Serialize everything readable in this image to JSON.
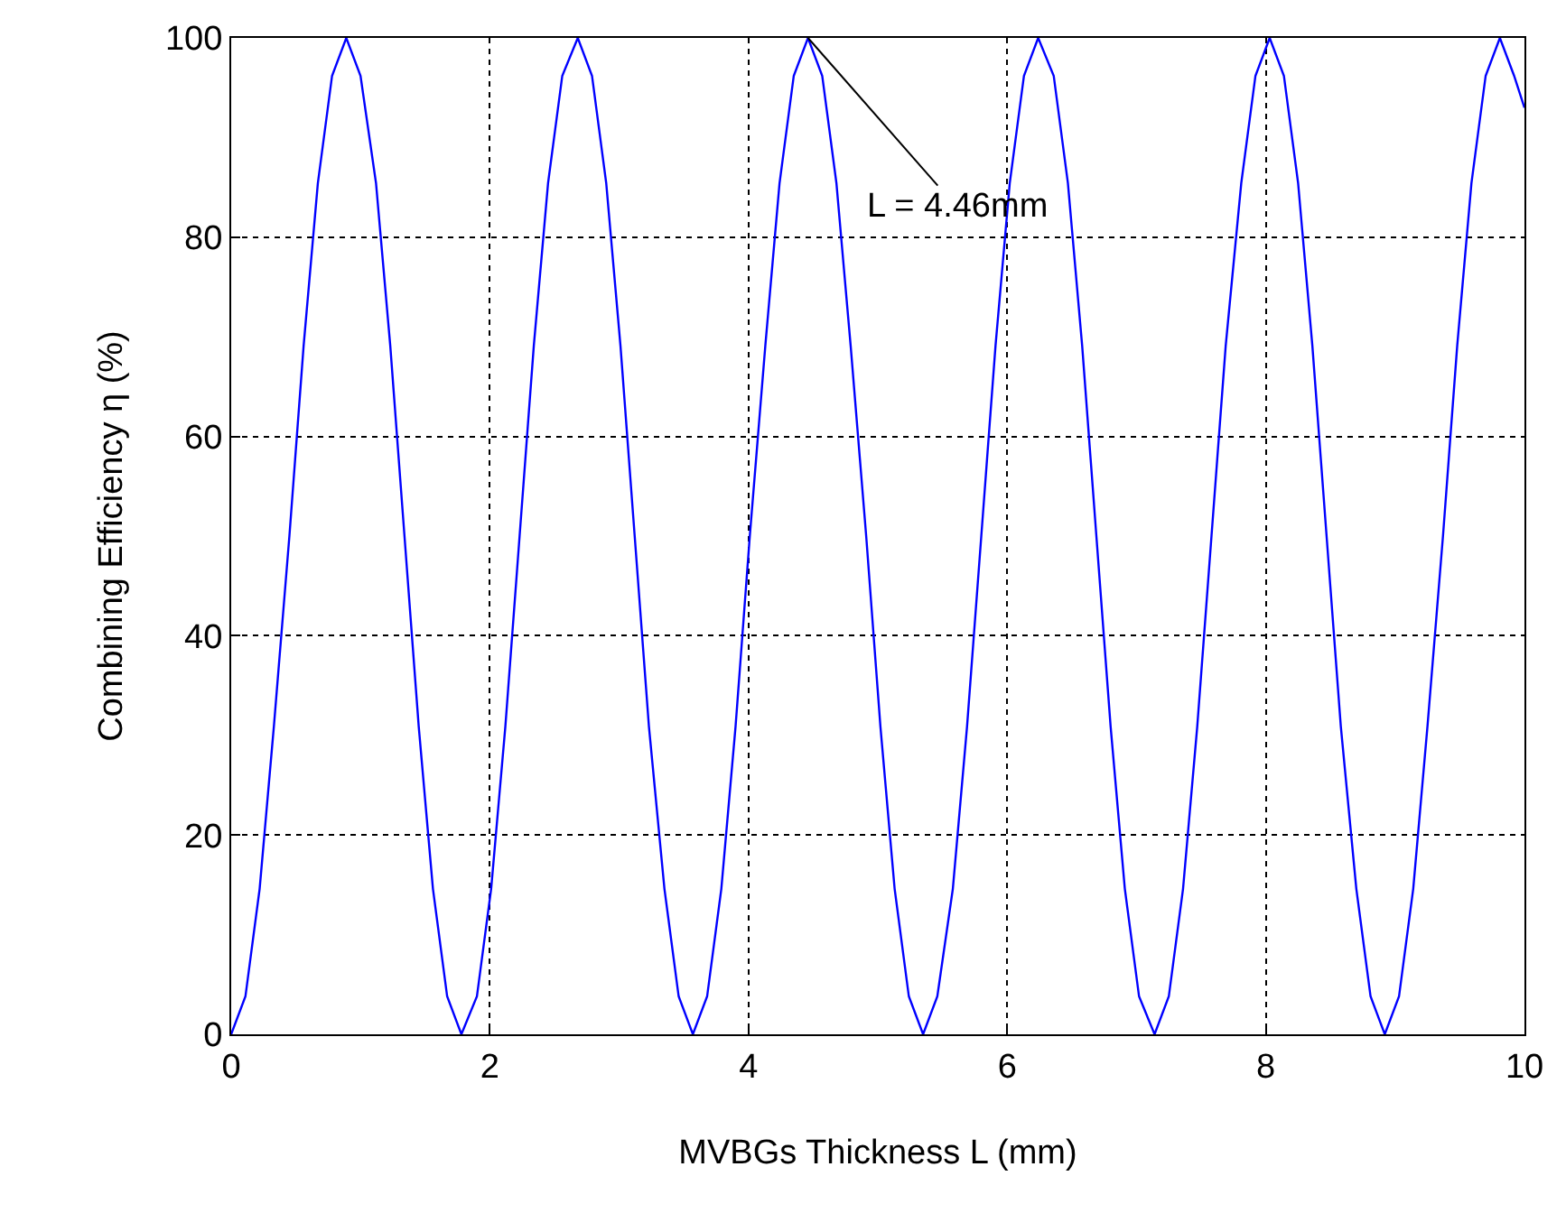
{
  "chart_data": {
    "type": "line",
    "xlabel": "MVBGs Thickness L (mm)",
    "ylabel": "Combining Efficiency η (%)",
    "x": [
      0,
      0.11,
      0.22,
      0.33,
      0.45,
      0.56,
      0.67,
      0.78,
      0.89,
      1.0,
      1.12,
      1.23,
      1.34,
      1.45,
      1.56,
      1.67,
      1.78,
      1.9,
      2.01,
      2.12,
      2.23,
      2.34,
      2.45,
      2.56,
      2.68,
      2.79,
      2.9,
      3.01,
      3.12,
      3.23,
      3.35,
      3.46,
      3.57,
      3.68,
      3.79,
      3.9,
      4.01,
      4.13,
      4.24,
      4.35,
      4.46,
      4.57,
      4.68,
      4.79,
      4.91,
      5.02,
      5.13,
      5.24,
      5.35,
      5.46,
      5.58,
      5.69,
      5.8,
      5.91,
      6.02,
      6.13,
      6.24,
      6.36,
      6.47,
      6.58,
      6.69,
      6.8,
      6.91,
      7.02,
      7.14,
      7.25,
      7.36,
      7.47,
      7.58,
      7.69,
      7.81,
      7.92,
      8.03,
      8.14,
      8.25,
      8.36,
      8.47,
      8.58,
      8.7,
      8.81,
      8.92,
      9.03,
      9.14,
      9.25,
      9.37,
      9.48,
      9.59,
      9.7,
      9.81,
      9.92,
      10
    ],
    "series": [
      {
        "color": "#0000ff",
        "values": [
          0,
          3.8,
          14.6,
          30.9,
          50,
          69.1,
          85.4,
          96.2,
          100,
          96.2,
          85.4,
          69.1,
          50,
          30.9,
          14.6,
          3.8,
          0,
          3.8,
          14.6,
          30.9,
          50,
          69.1,
          85.4,
          96.2,
          100,
          96.2,
          85.4,
          69.1,
          50,
          30.9,
          14.6,
          3.8,
          0,
          3.8,
          14.6,
          30.9,
          50,
          69.1,
          85.4,
          96.2,
          100,
          96.2,
          85.4,
          69.1,
          50,
          30.9,
          14.6,
          3.8,
          0,
          3.8,
          14.6,
          30.9,
          50,
          69.1,
          85.4,
          96.2,
          100,
          96.2,
          85.4,
          69.1,
          50,
          30.9,
          14.6,
          3.8,
          0,
          3.8,
          14.6,
          30.9,
          50,
          69.1,
          85.4,
          96.2,
          100,
          96.2,
          85.4,
          69.1,
          50,
          30.9,
          14.6,
          3.8,
          0,
          3.8,
          14.6,
          30.9,
          50,
          69.1,
          85.4,
          96.2,
          100,
          96.2,
          93
        ]
      }
    ],
    "xlim": [
      0,
      10
    ],
    "xticks": [
      0,
      2,
      4,
      6,
      8,
      10
    ],
    "ylim": [
      0,
      100
    ],
    "yticks": [
      0,
      20,
      40,
      60,
      80,
      100
    ],
    "grid": true,
    "legend": false,
    "marker": "none",
    "line_style": "solid",
    "annotations": [
      {
        "text": "L = 4.46mm",
        "x": 4.46,
        "y": 100
      }
    ]
  }
}
